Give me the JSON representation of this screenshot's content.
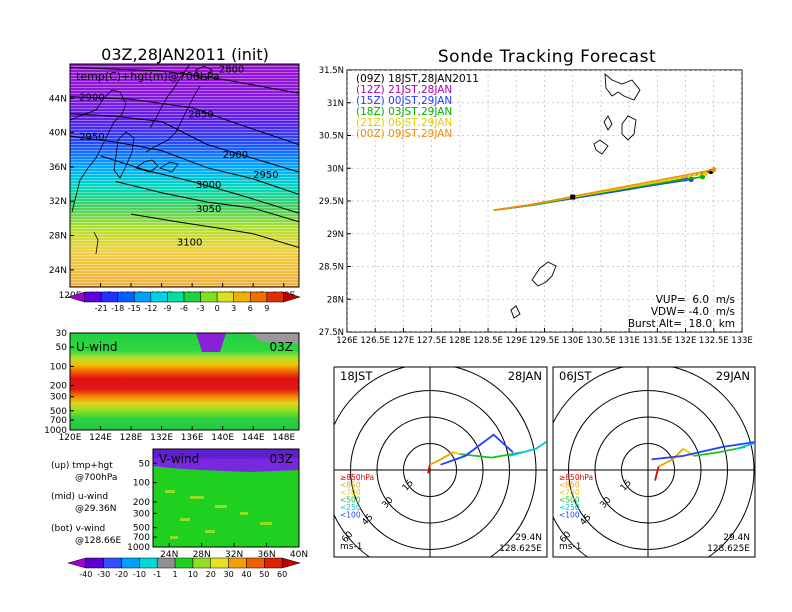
{
  "chart_data": [
    {
      "type": "heatmap",
      "panel": "map-temp-height",
      "title": "03Z,28JAN2011 (init)",
      "legend_text": "temp(C)+hgt(m)@700hPa",
      "x_ticks": [
        "120E",
        "124E",
        "128E",
        "132E",
        "136E",
        "140E",
        "144E",
        "148E"
      ],
      "y_ticks": [
        "24N",
        "28N",
        "32N",
        "36N",
        "40N",
        "44N"
      ],
      "xlim": [
        120,
        150
      ],
      "ylim": [
        22,
        48
      ],
      "contours": [
        {
          "label": "2800",
          "points": [
            [
              120,
              47.6
            ],
            [
              132,
              47.2
            ],
            [
              140,
              46.2
            ],
            [
              150,
              44.6
            ]
          ]
        },
        {
          "label": "2850",
          "points": [
            [
              120,
              44.2
            ],
            [
              128,
              43.9
            ],
            [
              136,
              42.9
            ],
            [
              142,
              41.0
            ],
            [
              150,
              38.6
            ]
          ]
        },
        {
          "label": "2900",
          "points": [
            [
              120,
              42.2
            ],
            [
              126,
              41.9
            ],
            [
              132,
              41.3
            ],
            [
              138,
              38.6
            ],
            [
              144,
              37.0
            ],
            [
              150,
              35.4
            ]
          ]
        },
        {
          "label": "2950",
          "points": [
            [
              120,
              39.6
            ],
            [
              126,
              38.9
            ],
            [
              132,
              37.9
            ],
            [
              138,
              35.9
            ],
            [
              144,
              34.6
            ],
            [
              150,
              32.8
            ]
          ]
        },
        {
          "label": "3000",
          "points": [
            [
              124,
              37.3
            ],
            [
              130,
              35.6
            ],
            [
              136,
              34.3
            ],
            [
              142,
              32.8
            ],
            [
              150,
              30.6
            ]
          ]
        },
        {
          "label": "3050",
          "points": [
            [
              126,
              34.3
            ],
            [
              132,
              33.0
            ],
            [
              138,
              31.9
            ],
            [
              144,
              31.2
            ],
            [
              150,
              29.6
            ]
          ]
        },
        {
          "label": "3100",
          "points": [
            [
              128,
              30.5
            ],
            [
              134,
              29.6
            ],
            [
              140,
              28.8
            ],
            [
              144,
              28.2
            ],
            [
              150,
              26.6
            ]
          ]
        }
      ],
      "contour_label_positions": [
        [
          139.5,
          47.5
        ],
        [
          121.2,
          44.2
        ],
        [
          121.2,
          39.6
        ],
        [
          135.5,
          42.2
        ],
        [
          140,
          37.5
        ],
        [
          144,
          35.2
        ],
        [
          136.5,
          34.0
        ],
        [
          136.5,
          31.2
        ],
        [
          134,
          27.3
        ]
      ],
      "colorbar": {
        "ticks": [
          "-21",
          "-18",
          "-15",
          "-12",
          "-9",
          "-6",
          "-3",
          "0",
          "3",
          "6",
          "9"
        ],
        "colors": [
          "#9b00d4",
          "#5c00e0",
          "#1f30ff",
          "#0060ff",
          "#00a0ff",
          "#00d0e8",
          "#00e0a0",
          "#20d040",
          "#80e020",
          "#d8e020",
          "#f0b000",
          "#f07000",
          "#e03000",
          "#c00000"
        ]
      }
    },
    {
      "type": "line",
      "panel": "sonde-tracking",
      "title": "Sonde Tracking Forecast",
      "x_ticks": [
        "126E",
        "126.5E",
        "127E",
        "127.5E",
        "128E",
        "128.5E",
        "129E",
        "129.5E",
        "130E",
        "130.5E",
        "131E",
        "131.5E",
        "132E",
        "132.5E",
        "133E"
      ],
      "y_ticks": [
        "27.5N",
        "28N",
        "28.5N",
        "29N",
        "29.5N",
        "30N",
        "30.5N",
        "31N",
        "31.5N"
      ],
      "xlim": [
        126,
        133
      ],
      "ylim": [
        27.5,
        31.5
      ],
      "series": [
        {
          "name": "(09Z)  18JST,28JAN2011",
          "color": "#000000",
          "x": [
            128.6,
            129.3,
            130.0,
            130.8,
            131.6,
            132.2,
            132.45
          ],
          "y": [
            29.36,
            29.45,
            29.56,
            29.68,
            29.8,
            29.9,
            29.95
          ]
        },
        {
          "name": "(12Z)  21JST,28JAN",
          "color": "#b000b0",
          "x": [
            128.6,
            129.3,
            130.0,
            130.8,
            131.5,
            132.0
          ],
          "y": [
            29.36,
            29.44,
            29.55,
            29.66,
            29.76,
            29.84
          ]
        },
        {
          "name": "(15Z)  00JST,29JAN",
          "color": "#2040ff",
          "x": [
            128.6,
            129.3,
            130.0,
            130.8,
            131.5,
            132.1
          ],
          "y": [
            29.36,
            29.44,
            29.54,
            29.65,
            29.75,
            29.83
          ]
        },
        {
          "name": "(18Z)  03JST,29JAN",
          "color": "#00b000",
          "x": [
            128.6,
            129.3,
            130.0,
            130.8,
            131.6,
            132.3
          ],
          "y": [
            29.36,
            29.44,
            29.55,
            29.67,
            29.78,
            29.87
          ]
        },
        {
          "name": "(21Z)  06JST,29JAN",
          "color": "#e0d000",
          "x": [
            128.6,
            129.3,
            130.0,
            130.8,
            131.6,
            132.35
          ],
          "y": [
            29.36,
            29.45,
            29.56,
            29.68,
            29.8,
            29.92
          ]
        },
        {
          "name": "(00Z)  09JST,29JAN",
          "color": "#f09000",
          "x": [
            128.6,
            129.3,
            130.0,
            130.8,
            131.6,
            132.5
          ],
          "y": [
            29.36,
            29.45,
            29.57,
            29.7,
            29.83,
            29.98
          ]
        }
      ],
      "launch_point": [
        130.0,
        29.56
      ],
      "annotations": [
        "VUP=  6.0  m/s",
        "VDW= -4.0  m/s",
        "Burst Alt=  18.0  km"
      ]
    },
    {
      "type": "heatmap",
      "panel": "u-wind",
      "title": "U-wind",
      "time_label": "03Z",
      "x_ticks": [
        "120E",
        "124E",
        "128E",
        "132E",
        "136E",
        "140E",
        "144E",
        "148E"
      ],
      "y_ticks": [
        "30",
        "50",
        "100",
        "200",
        "300",
        "500",
        "700",
        "1000"
      ]
    },
    {
      "type": "heatmap",
      "panel": "v-wind",
      "title": "V-wind",
      "time_label": "03Z",
      "x_ticks": [
        "24N",
        "28N",
        "32N",
        "36N",
        "40N"
      ],
      "y_ticks": [
        "50",
        "100",
        "200",
        "300",
        "500",
        "700",
        "1000"
      ],
      "colorbar": {
        "ticks": [
          "-40",
          "-30",
          "-20",
          "-10",
          "-1",
          "1",
          "10",
          "20",
          "30",
          "40",
          "50",
          "60"
        ],
        "colors": [
          "#a000c8",
          "#6000d0",
          "#3050ff",
          "#00a0ff",
          "#00d8d8",
          "#909090",
          "#20d020",
          "#90e020",
          "#e8e020",
          "#f0a000",
          "#f06000",
          "#e02000",
          "#c00000"
        ]
      }
    },
    {
      "type": "line",
      "panel": "hodograph-18jst",
      "label_left": "18JST",
      "label_right": "28JAN",
      "position_text": [
        "29.4N",
        "128.625E"
      ],
      "units_label": "ms-1",
      "ring_labels": [
        "15",
        "30",
        "45",
        "60"
      ],
      "levels_legend": [
        "≥850hPa",
        "<850",
        "<700",
        "<500",
        "<250",
        "<100"
      ],
      "series": [
        {
          "level": "≥850hPa",
          "color": "#e00000",
          "points": [
            [
              -1,
              -2
            ],
            [
              -0.5,
              1
            ],
            [
              0,
              3
            ]
          ]
        },
        {
          "level": "<850",
          "color": "#f0a000",
          "points": [
            [
              0,
              3
            ],
            [
              6,
              6
            ],
            [
              13,
              10
            ]
          ]
        },
        {
          "level": "<700",
          "color": "#e0d000",
          "points": [
            [
              13,
              10
            ],
            [
              17,
              9
            ]
          ]
        },
        {
          "level": "<500",
          "color": "#20c020",
          "points": [
            [
              17,
              9
            ],
            [
              35,
              7
            ],
            [
              52,
              10
            ]
          ]
        },
        {
          "level": "<250",
          "color": "#00c8c8",
          "points": [
            [
              45,
              8
            ],
            [
              60,
              12
            ],
            [
              66,
              16
            ]
          ]
        },
        {
          "level": "<100",
          "color": "#2040ff",
          "points": [
            [
              6,
              3
            ],
            [
              20,
              8
            ],
            [
              36,
              20
            ],
            [
              47,
              10
            ]
          ]
        }
      ]
    },
    {
      "type": "line",
      "panel": "hodograph-06jst",
      "label_left": "06JST",
      "label_right": "29JAN",
      "position_text": [
        "29.4N",
        "128.625E"
      ],
      "units_label": "ms-1",
      "ring_labels": [
        "15",
        "30",
        "45",
        "60"
      ],
      "levels_legend": [
        "≥850hPa",
        "<850",
        "<700",
        "<500",
        "<250",
        "<100"
      ],
      "series": [
        {
          "level": "≥850hPa",
          "color": "#e00000",
          "points": [
            [
              4,
              -6
            ],
            [
              5,
              -2
            ],
            [
              6,
              2
            ]
          ]
        },
        {
          "level": "<850",
          "color": "#f0a000",
          "points": [
            [
              6,
              2
            ],
            [
              14,
              6
            ],
            [
              20,
              12
            ]
          ]
        },
        {
          "level": "<700",
          "color": "#e0d000",
          "points": [
            [
              20,
              12
            ],
            [
              26,
              8
            ]
          ]
        },
        {
          "level": "<500",
          "color": "#20c020",
          "points": [
            [
              26,
              8
            ],
            [
              40,
              10
            ],
            [
              55,
              13
            ]
          ]
        },
        {
          "level": "<250",
          "color": "#00c8c8",
          "points": [
            [
              50,
              12
            ],
            [
              63,
              16
            ],
            [
              70,
              18
            ]
          ]
        },
        {
          "level": "<100",
          "color": "#2040ff",
          "points": [
            [
              2,
              6
            ],
            [
              20,
              8
            ],
            [
              42,
              13
            ],
            [
              68,
              17
            ]
          ]
        }
      ]
    }
  ],
  "side_legend": [
    {
      "line1": "(up) tmp+hgt",
      "line2": "@700hPa"
    },
    {
      "line1": "(mid) u-wind",
      "line2": "@29.36N"
    },
    {
      "line1": "(bot) v-wind",
      "line2": "@128.66E"
    }
  ]
}
